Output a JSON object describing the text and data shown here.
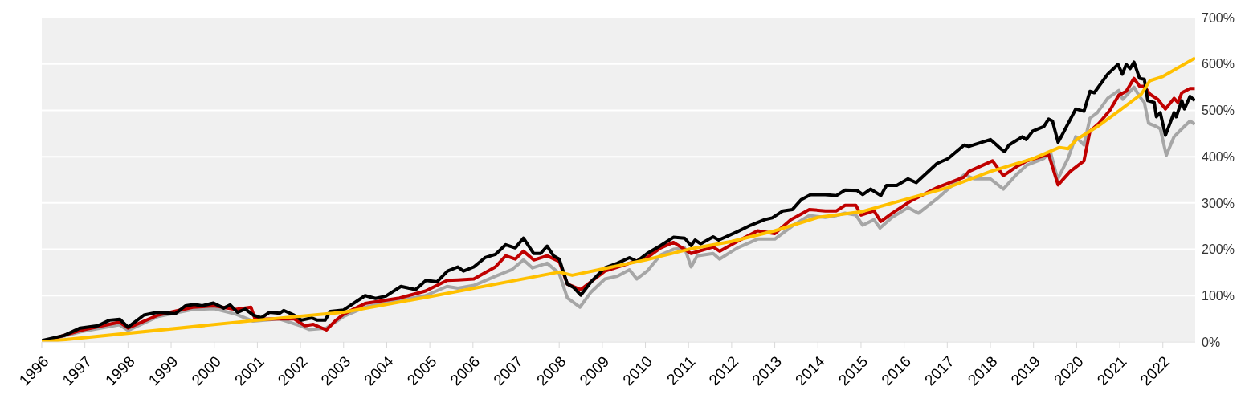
{
  "chart_data": {
    "type": "line",
    "xlim": [
      1996,
      2022.75
    ],
    "xticks": [
      1996,
      1997,
      1998,
      1999,
      2000,
      2001,
      2002,
      2003,
      2004,
      2005,
      2006,
      2007,
      2008,
      2009,
      2010,
      2011,
      2012,
      2013,
      2014,
      2015,
      2016,
      2017,
      2018,
      2019,
      2020,
      2021,
      2022
    ],
    "ylim": [
      0,
      700
    ],
    "yticks": [
      {
        "value": 0,
        "label": "0%"
      },
      {
        "value": 100,
        "label": "100%"
      },
      {
        "value": 200,
        "label": "200%"
      },
      {
        "value": 300,
        "label": "300%"
      },
      {
        "value": 400,
        "label": "400%"
      },
      {
        "value": 500,
        "label": "500%"
      },
      {
        "value": 600,
        "label": "600%"
      },
      {
        "value": 700,
        "label": "700%"
      }
    ],
    "grid": "y",
    "legend": false,
    "marker": "none",
    "line_style": "solid",
    "series": [
      {
        "color": "#a6a6a6",
        "x": [
          1996,
          1996.9,
          1997.8,
          1998.0,
          1998.7,
          1999.5,
          2000.0,
          2000.5,
          2000.9,
          2001.5,
          2002.0,
          2002.2,
          2002.6,
          2003.0,
          2003.5,
          2004.0,
          2004.9,
          2005.4,
          2005.65,
          2006.02,
          2006.52,
          2006.9,
          2007.17,
          2007.38,
          2007.72,
          2008.0,
          2008.19,
          2008.48,
          2008.74,
          2009.06,
          2009.35,
          2009.63,
          2009.8,
          2010.04,
          2010.35,
          2010.65,
          2010.91,
          2011.06,
          2011.2,
          2011.57,
          2011.72,
          2012.13,
          2012.6,
          2013.0,
          2013.43,
          2013.8,
          2014.17,
          2014.43,
          2014.63,
          2014.88,
          2015.04,
          2015.3,
          2015.44,
          2015.72,
          2016.09,
          2016.33,
          2016.76,
          2017.39,
          2017.63,
          2018.0,
          2018.3,
          2018.6,
          2018.85,
          2019.24,
          2019.39,
          2019.56,
          2019.8,
          2019.98,
          2020.17,
          2020.31,
          2020.48,
          2020.72,
          2020.98,
          2021.07,
          2021.33,
          2021.46,
          2021.57,
          2021.67,
          2021.85,
          2021.94,
          2022.08,
          2022.26,
          2022.44,
          2022.63,
          2022.74
        ],
        "values": [
          0,
          22,
          37,
          25,
          55,
          70,
          72,
          60,
          45,
          50,
          35,
          27,
          30,
          55,
          75,
          85,
          100,
          120,
          116,
          122,
          142,
          156,
          177,
          160,
          170,
          148,
          95,
          75,
          108,
          136,
          142,
          156,
          136,
          153,
          188,
          200,
          203,
          162,
          186,
          191,
          179,
          203,
          222,
          222,
          252,
          273,
          269,
          273,
          278,
          274,
          252,
          264,
          246,
          269,
          290,
          278,
          309,
          361,
          352,
          352,
          330,
          361,
          382,
          396,
          411,
          351,
          396,
          443,
          425,
          483,
          495,
          526,
          543,
          524,
          550,
          530,
          517,
          472,
          465,
          460,
          403,
          443,
          460,
          477,
          470
        ]
      },
      {
        "color": "#c00000",
        "x": [
          1996,
          1996.9,
          1997.8,
          1998.0,
          1998.7,
          1999.5,
          2000.0,
          2000.5,
          2000.85,
          2000.95,
          2001.5,
          2001.85,
          2002.1,
          2002.3,
          2002.6,
          2002.8,
          2003.0,
          2003.5,
          2004.3,
          2004.9,
          2005.4,
          2005.65,
          2006.02,
          2006.52,
          2006.76,
          2006.98,
          2007.17,
          2007.41,
          2007.72,
          2008.0,
          2008.19,
          2008.5,
          2009.06,
          2009.63,
          2010.04,
          2010.35,
          2010.65,
          2011.06,
          2011.57,
          2011.72,
          2012.13,
          2012.6,
          2013.0,
          2013.37,
          2013.8,
          2014.17,
          2014.43,
          2014.63,
          2014.88,
          2015.0,
          2015.3,
          2015.46,
          2015.72,
          2016.15,
          2016.76,
          2017.39,
          2017.5,
          2018.05,
          2018.3,
          2018.6,
          2018.85,
          2019.35,
          2019.57,
          2019.85,
          2020.17,
          2020.31,
          2020.52,
          2020.77,
          2020.98,
          2021.15,
          2021.33,
          2021.46,
          2021.57,
          2021.7,
          2021.88,
          2022.06,
          2022.26,
          2022.35,
          2022.44,
          2022.63,
          2022.74
        ],
        "values": [
          0,
          25,
          43,
          30,
          58,
          75,
          78,
          70,
          75,
          49,
          50,
          50,
          35,
          38,
          26,
          45,
          60,
          83,
          95,
          110,
          133,
          134,
          136,
          162,
          186,
          179,
          196,
          177,
          186,
          174,
          125,
          113,
          153,
          170,
          182,
          203,
          215,
          191,
          205,
          196,
          217,
          240,
          234,
          264,
          286,
          283,
          283,
          295,
          295,
          274,
          283,
          260,
          278,
          304,
          333,
          356,
          368,
          391,
          359,
          378,
          391,
          405,
          339,
          368,
          391,
          455,
          472,
          500,
          533,
          541,
          569,
          552,
          552,
          535,
          524,
          503,
          526,
          517,
          538,
          547,
          547
        ]
      },
      {
        "color": "#000000",
        "x": [
          1996,
          1996.52,
          1996.89,
          1997.3,
          1997.57,
          1997.81,
          1998.0,
          1998.37,
          1998.69,
          1999.1,
          1999.33,
          1999.54,
          1999.72,
          1999.98,
          2000.22,
          2000.37,
          2000.54,
          2000.72,
          2000.91,
          2001.09,
          2001.28,
          2001.52,
          2001.61,
          2001.85,
          2002.02,
          2002.26,
          2002.39,
          2002.57,
          2002.69,
          2003.0,
          2003.5,
          2003.74,
          2003.98,
          2004.33,
          2004.67,
          2004.91,
          2005.17,
          2005.41,
          2005.65,
          2005.78,
          2006.02,
          2006.28,
          2006.52,
          2006.76,
          2006.98,
          2007.17,
          2007.41,
          2007.57,
          2007.72,
          2007.87,
          2008.0,
          2008.19,
          2008.33,
          2008.5,
          2008.74,
          2009.06,
          2009.35,
          2009.63,
          2009.8,
          2010.04,
          2010.35,
          2010.65,
          2010.91,
          2011.06,
          2011.15,
          2011.28,
          2011.57,
          2011.7,
          2012.13,
          2012.44,
          2012.76,
          2012.94,
          2013.19,
          2013.41,
          2013.61,
          2013.83,
          2014.17,
          2014.43,
          2014.63,
          2014.91,
          2015.04,
          2015.22,
          2015.46,
          2015.59,
          2015.83,
          2016.09,
          2016.28,
          2016.76,
          2017.02,
          2017.39,
          2017.5,
          2018.0,
          2018.24,
          2018.33,
          2018.43,
          2018.74,
          2018.83,
          2018.98,
          2019.24,
          2019.35,
          2019.44,
          2019.57,
          2019.67,
          2019.98,
          2020.17,
          2020.31,
          2020.41,
          2020.72,
          2020.96,
          2021.06,
          2021.15,
          2021.24,
          2021.33,
          2021.46,
          2021.57,
          2021.65,
          2021.8,
          2021.85,
          2021.94,
          2022.06,
          2022.26,
          2022.31,
          2022.44,
          2022.5,
          2022.63,
          2022.74
        ],
        "values": [
          3,
          14,
          30,
          35,
          47,
          49,
          32,
          58,
          64,
          61,
          78,
          81,
          78,
          84,
          73,
          80,
          64,
          71,
          58,
          52,
          64,
          62,
          68,
          58,
          47,
          52,
          47,
          47,
          66,
          69,
          100,
          94,
          99,
          120,
          113,
          133,
          130,
          153,
          162,
          153,
          162,
          182,
          189,
          210,
          203,
          224,
          191,
          191,
          207,
          186,
          179,
          125,
          118,
          101,
          130,
          160,
          170,
          182,
          174,
          191,
          208,
          226,
          224,
          208,
          220,
          212,
          227,
          220,
          238,
          252,
          264,
          268,
          283,
          286,
          307,
          318,
          318,
          316,
          328,
          327,
          318,
          330,
          316,
          338,
          338,
          352,
          344,
          385,
          396,
          425,
          422,
          437,
          417,
          411,
          425,
          443,
          437,
          455,
          465,
          481,
          477,
          431,
          448,
          503,
          498,
          541,
          538,
          578,
          599,
          578,
          599,
          590,
          604,
          569,
          567,
          521,
          517,
          486,
          495,
          446,
          495,
          486,
          521,
          503,
          530,
          521
        ]
      },
      {
        "color": "#ffc000",
        "x": [
          1996,
          2001,
          2003,
          2005,
          2008,
          2008.3,
          2010,
          2011,
          2012,
          2013,
          2014,
          2015,
          2016,
          2017,
          2018,
          2019,
          2019.6,
          2019.8,
          2020,
          2020.5,
          2021,
          2021.5,
          2021.7,
          2022,
          2022.75
        ],
        "values": [
          0,
          47,
          64,
          98,
          151,
          144,
          177,
          200,
          217,
          240,
          269,
          281,
          307,
          333,
          368,
          396,
          420,
          417,
          437,
          466,
          500,
          535,
          564,
          573,
          613
        ]
      }
    ]
  }
}
